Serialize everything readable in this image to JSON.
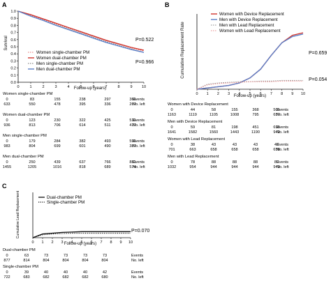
{
  "colors": {
    "red": "#d0342c",
    "blue": "#5b7fc8",
    "grey": "#8a8a8a",
    "black": "#111111",
    "pink": "#e88a8a"
  },
  "panelA": {
    "letter": "A",
    "ylabel": "Survival",
    "xlabel": "Follow-up (years)",
    "xticks": [
      "0",
      "1",
      "2",
      "3",
      "4",
      "5",
      "6",
      "7",
      "8",
      "9",
      "10"
    ],
    "yticks": [
      "0.0",
      "0.1",
      "0.2",
      "0.3",
      "0.4",
      "0.5",
      "0.6",
      "0.7",
      "0.8",
      "0.9",
      "1.0"
    ],
    "pvalues": [
      "P=0.522",
      "P=0.966"
    ],
    "legend": [
      "Women single-chamber PM",
      "Women dual-chamber PM",
      "Men single-chamber PM",
      "Men dual-chamber PM"
    ],
    "chart_data": {
      "type": "line",
      "x": [
        0,
        1,
        2,
        3,
        4,
        5,
        6,
        7,
        8,
        9,
        10
      ],
      "xlim": [
        0,
        10
      ],
      "ylim": [
        0,
        1
      ],
      "series": [
        {
          "name": "Women single-chamber PM",
          "values": [
            1.0,
            0.94,
            0.88,
            0.82,
            0.76,
            0.7,
            0.64,
            0.58,
            0.53,
            0.48,
            0.44
          ]
        },
        {
          "name": "Women dual-chamber PM",
          "values": [
            1.0,
            0.95,
            0.89,
            0.83,
            0.77,
            0.71,
            0.65,
            0.59,
            0.54,
            0.49,
            0.45
          ]
        },
        {
          "name": "Men single-chamber PM",
          "values": [
            1.0,
            0.93,
            0.87,
            0.81,
            0.75,
            0.69,
            0.63,
            0.57,
            0.52,
            0.47,
            0.42
          ]
        },
        {
          "name": "Men dual-chamber PM",
          "values": [
            1.0,
            0.93,
            0.87,
            0.8,
            0.74,
            0.68,
            0.62,
            0.56,
            0.51,
            0.46,
            0.42
          ]
        }
      ]
    },
    "table": [
      {
        "label": "Women single-chamber PM",
        "events": [
          "0",
          "83",
          "155",
          "238",
          "297",
          "366"
        ],
        "left": [
          "633",
          "550",
          "478",
          "395",
          "336",
          "267"
        ],
        "events_label": "Events",
        "left_label": "No. left"
      },
      {
        "label": "Women dual-chamber PM",
        "events": [
          "0",
          "123",
          "230",
          "322",
          "425",
          "519"
        ],
        "left": [
          "936",
          "813",
          "706",
          "614",
          "511",
          "417"
        ],
        "events_label": "Events",
        "left_label": "No. left"
      },
      {
        "label": "Men single-chamber PM",
        "events": [
          "0",
          "179",
          "284",
          "382",
          "493",
          "596"
        ],
        "left": [
          "983",
          "804",
          "699",
          "601",
          "490",
          "387"
        ],
        "events_label": "Events",
        "left_label": "No. left"
      },
      {
        "label": "Men dual-chamber PM",
        "events": [
          "0",
          "250",
          "439",
          "637",
          "766",
          "881"
        ],
        "left": [
          "1455",
          "1205",
          "1016",
          "818",
          "689",
          "574"
        ],
        "events_label": "Events",
        "left_label": "No. left"
      }
    ]
  },
  "panelB": {
    "letter": "B",
    "ylabel": "Cumulative Replacement Rate",
    "xlabel": "Follow-up (years)",
    "xticks": [
      "0",
      "1",
      "2",
      "3",
      "4",
      "5",
      "6",
      "7",
      "8",
      "9",
      "10"
    ],
    "pvalues": [
      "P=0.659",
      "P=0.054"
    ],
    "legend": [
      "Women with Device Replacement",
      "Men with Device Replacement",
      "Men with Lead Replacement",
      "Women with Lead Replacement"
    ],
    "chart_data": {
      "type": "line",
      "x": [
        0,
        1,
        2,
        3,
        4,
        5,
        6,
        7,
        8,
        9,
        10
      ],
      "xlim": [
        0,
        10
      ],
      "ylim": [
        0,
        0.6
      ],
      "series": [
        {
          "name": "Women with Device Replacement",
          "values": [
            0,
            0.01,
            0.02,
            0.03,
            0.05,
            0.09,
            0.16,
            0.27,
            0.37,
            0.43,
            0.45
          ]
        },
        {
          "name": "Men with Device Replacement",
          "values": [
            0,
            0.01,
            0.02,
            0.03,
            0.05,
            0.09,
            0.16,
            0.27,
            0.37,
            0.42,
            0.44
          ]
        },
        {
          "name": "Men with Lead Replacement",
          "values": [
            0,
            0.04,
            0.05,
            0.055,
            0.06,
            0.06,
            0.065,
            0.065,
            0.07,
            0.07,
            0.07
          ]
        },
        {
          "name": "Women with Lead Replacement",
          "values": [
            0,
            0.035,
            0.045,
            0.05,
            0.055,
            0.06,
            0.06,
            0.06,
            0.065,
            0.065,
            0.065
          ]
        }
      ]
    },
    "table": [
      {
        "label": "Women with Device Replacement",
        "events": [
          "0",
          "44",
          "58",
          "155",
          "368",
          "505"
        ],
        "left": [
          "1163",
          "1119",
          "1105",
          "1008",
          "795",
          "657"
        ],
        "events_label": "Events",
        "left_label": "No. left"
      },
      {
        "label": "Men with Device Replacement",
        "events": [
          "0",
          "59",
          "81",
          "198",
          "451",
          "698"
        ],
        "left": [
          "1641",
          "1582",
          "1560",
          "1443",
          "1190",
          "942"
        ],
        "events_label": "Events",
        "left_label": "No. left"
      },
      {
        "label": "Women with Lead Replacement",
        "events": [
          "0",
          "38",
          "43",
          "43",
          "43",
          "43"
        ],
        "left": [
          "701",
          "663",
          "658",
          "658",
          "658",
          "658"
        ],
        "events_label": "Events",
        "left_label": "No. left"
      },
      {
        "label": "Men with Lead Replacement",
        "events": [
          "0",
          "78",
          "88",
          "88",
          "88",
          "89"
        ],
        "left": [
          "1032",
          "954",
          "944",
          "944",
          "944",
          "943"
        ],
        "events_label": "Events",
        "left_label": "No. left"
      }
    ]
  },
  "panelC": {
    "letter": "C",
    "ylabel": "Cumulative Lead Replacement",
    "xlabel": "Follow-up (years)",
    "xticks": [
      "0",
      "1",
      "2",
      "3",
      "4",
      "5",
      "6",
      "7",
      "8",
      "9",
      "10"
    ],
    "pvalues": [
      "P=0.070"
    ],
    "legend": [
      "Dual-chamber PM",
      "Single-chamber PM"
    ],
    "chart_data": {
      "type": "line",
      "x": [
        0,
        1,
        2,
        3,
        4,
        5,
        6,
        7,
        8,
        9,
        10
      ],
      "xlim": [
        0,
        10
      ],
      "ylim": [
        0,
        0.6
      ],
      "series": [
        {
          "name": "Dual-chamber PM",
          "values": [
            0,
            0.05,
            0.06,
            0.07,
            0.075,
            0.08,
            0.08,
            0.08,
            0.08,
            0.08,
            0.08
          ]
        },
        {
          "name": "Single-chamber PM",
          "values": [
            0,
            0.04,
            0.05,
            0.055,
            0.06,
            0.06,
            0.06,
            0.06,
            0.06,
            0.06,
            0.06
          ]
        }
      ]
    },
    "table": [
      {
        "label": "Dual-chamber PM",
        "events": [
          "0",
          "63",
          "73",
          "73",
          "73",
          "73"
        ],
        "left": [
          "877",
          "814",
          "804",
          "804",
          "804",
          "804"
        ],
        "events_label": "Events",
        "left_label": "No. left"
      },
      {
        "label": "Single-chamber PM",
        "events": [
          "0",
          "39",
          "40",
          "40",
          "40",
          "42"
        ],
        "left": [
          "722",
          "683",
          "682",
          "682",
          "682",
          "680"
        ],
        "events_label": "Events",
        "left_label": "No. left"
      }
    ]
  }
}
